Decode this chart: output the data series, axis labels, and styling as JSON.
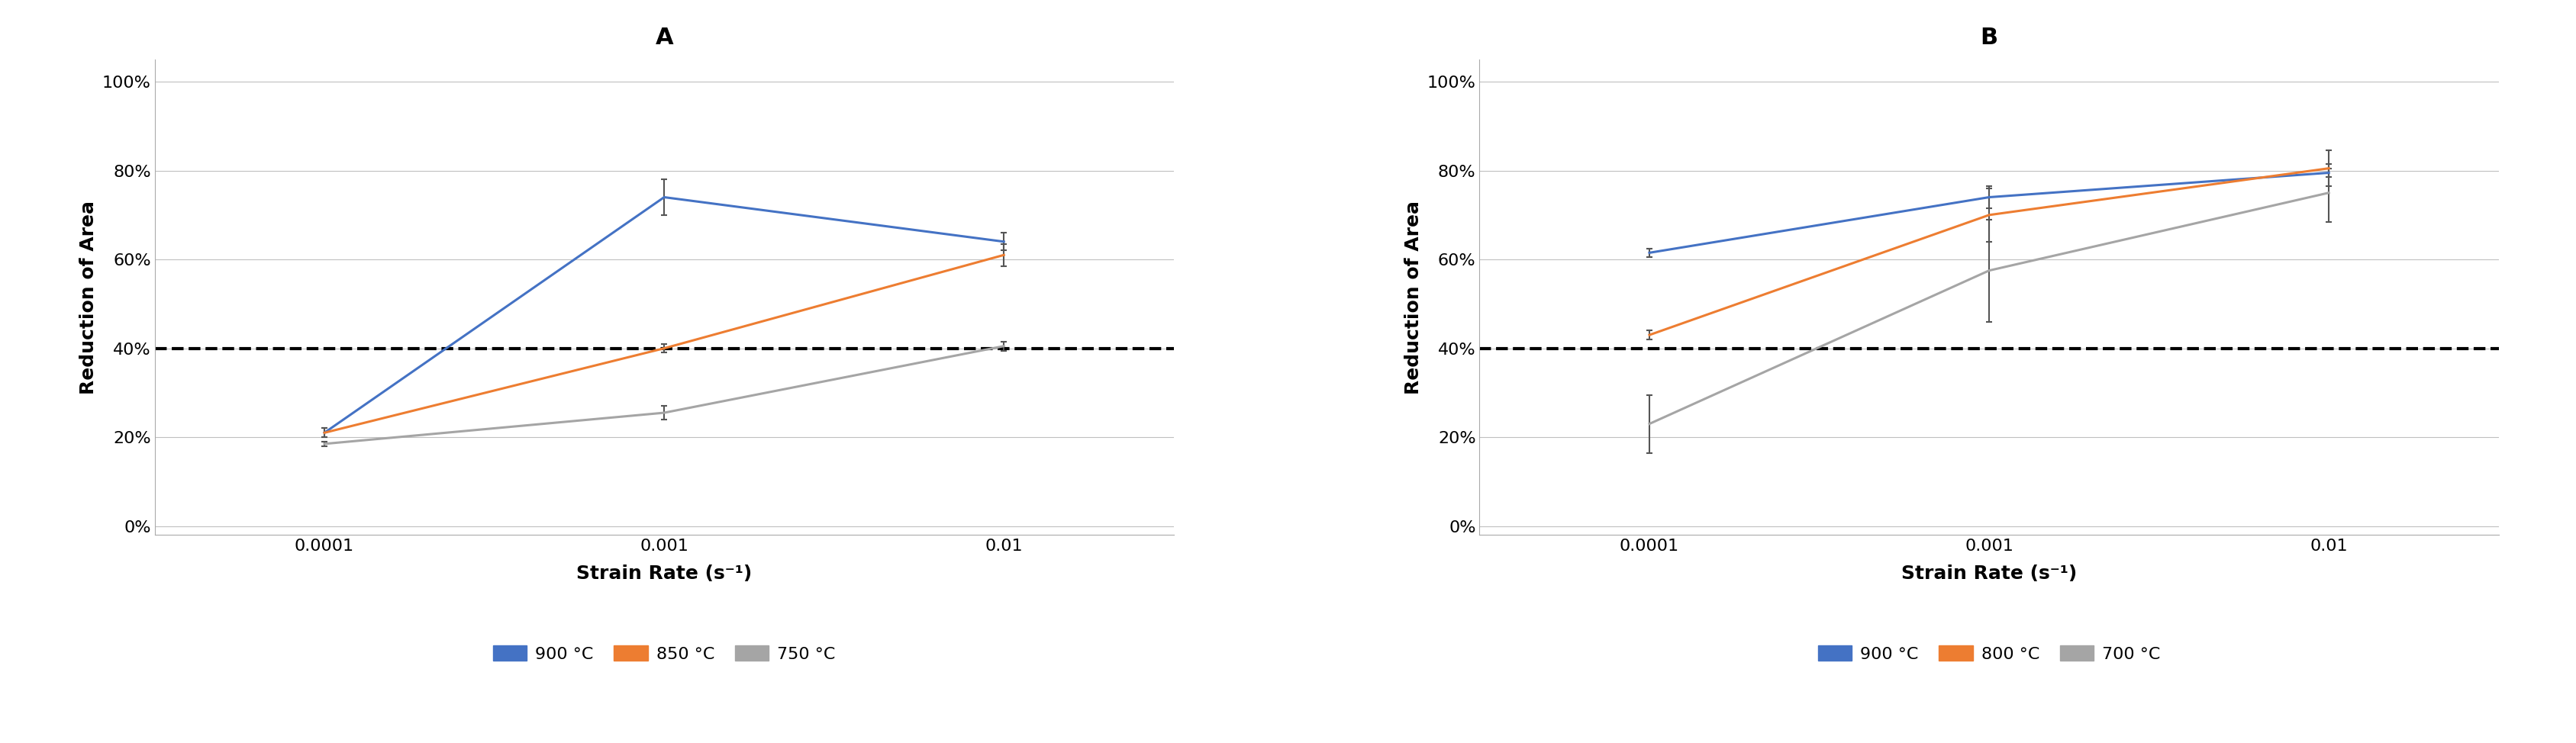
{
  "x_labels": [
    "0.0001",
    "0.001",
    "0.01"
  ],
  "panel_A": {
    "title": "A",
    "series": [
      {
        "label": "900 °C",
        "color": "#4472C4",
        "values": [
          0.21,
          0.74,
          0.64
        ],
        "yerr": [
          0.01,
          0.04,
          0.02
        ]
      },
      {
        "label": "850 °C",
        "color": "#ED7D31",
        "values": [
          0.21,
          0.4,
          0.61
        ],
        "yerr": [
          0.01,
          0.01,
          0.025
        ]
      },
      {
        "label": "750 °C",
        "color": "#A5A5A5",
        "values": [
          0.185,
          0.255,
          0.405
        ],
        "yerr": [
          0.005,
          0.015,
          0.01
        ]
      }
    ]
  },
  "panel_B": {
    "title": "B",
    "series": [
      {
        "label": "900 °C",
        "color": "#4472C4",
        "values": [
          0.615,
          0.74,
          0.795
        ],
        "yerr": [
          0.01,
          0.025,
          0.01
        ]
      },
      {
        "label": "800 °C",
        "color": "#ED7D31",
        "values": [
          0.43,
          0.7,
          0.805
        ],
        "yerr": [
          0.01,
          0.06,
          0.04
        ]
      },
      {
        "label": "700 °C",
        "color": "#A5A5A5",
        "values": [
          0.23,
          0.575,
          0.75
        ],
        "yerr": [
          0.065,
          0.115,
          0.065
        ]
      }
    ]
  },
  "dashed_line_y": 0.4,
  "ylim": [
    -0.02,
    1.05
  ],
  "yticks": [
    0.0,
    0.2,
    0.4,
    0.6,
    0.8,
    1.0
  ],
  "ylabel": "Reduction of Area",
  "xlabel": "Strain Rate (s⁻¹)",
  "background_color": "#FFFFFF",
  "line_width": 2.2,
  "marker": "none",
  "capsize": 3,
  "errorbar_color": "#555555",
  "errorbar_lw": 1.5,
  "title_fontsize": 22,
  "label_fontsize": 18,
  "tick_fontsize": 16,
  "legend_fontsize": 16,
  "grid_color": "#C0C0C0",
  "dashed_lw": 3.0
}
